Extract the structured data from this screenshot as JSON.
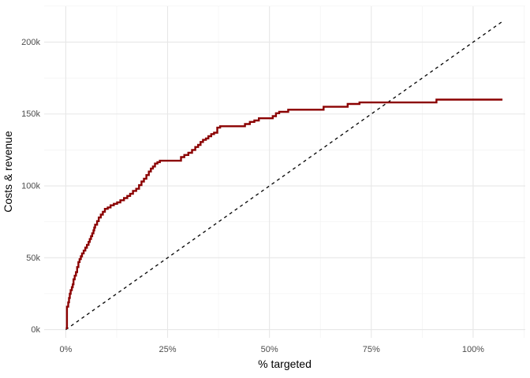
{
  "figure": {
    "background": "#FFFFFF"
  },
  "chart_data": {
    "type": "line",
    "subtype": "cumulative-gains-step-curve-with-diagonal-reference",
    "title": "",
    "xlabel": "% targeted",
    "ylabel": "Costs & revenue",
    "x_unit": "percent",
    "y_unit": "thousands",
    "x_domain": [
      -5.3,
      112.8
    ],
    "y_domain": [
      -5.7,
      224.9
    ],
    "x_major_ticks": [
      0,
      25,
      50,
      75,
      100
    ],
    "x_tick_labels": [
      "0%",
      "25%",
      "50%",
      "75%",
      "100%"
    ],
    "x_minor_ticks": [
      12.5,
      37.5,
      62.5,
      87.5,
      112.5
    ],
    "y_major_ticks": [
      0,
      50,
      100,
      150,
      200
    ],
    "y_tick_labels": [
      "0k",
      "50k",
      "100k",
      "150k",
      "200k"
    ],
    "y_minor_ticks": [
      25,
      75,
      125,
      175,
      225
    ],
    "grid": {
      "show_major": true,
      "show_minor": true,
      "major_color": "#E7E7E7",
      "minor_color": "#F2F2F2",
      "major_width": 1.1,
      "minor_width": 0.7,
      "background": "#FFFFFF"
    },
    "legend": "none",
    "tick_label_color": "#4D4D4D",
    "axis_title_color": "#000000",
    "series": [
      {
        "name": "cumulative revenue step curve",
        "type": "step-hv",
        "color": "#8B0000",
        "stroke_width": 2.4,
        "points": [
          [
            0,
            1
          ],
          [
            0.3,
            16
          ],
          [
            0.6,
            19
          ],
          [
            0.8,
            22
          ],
          [
            1.0,
            25
          ],
          [
            1.2,
            27.5
          ],
          [
            1.5,
            29.5
          ],
          [
            1.7,
            31.5
          ],
          [
            1.9,
            35
          ],
          [
            2.2,
            37.5
          ],
          [
            2.5,
            40
          ],
          [
            2.8,
            43.5
          ],
          [
            3.1,
            47
          ],
          [
            3.4,
            49
          ],
          [
            3.7,
            51
          ],
          [
            4.0,
            53
          ],
          [
            4.4,
            55
          ],
          [
            4.8,
            57
          ],
          [
            5.2,
            59
          ],
          [
            5.6,
            61
          ],
          [
            5.9,
            63
          ],
          [
            6.2,
            65
          ],
          [
            6.5,
            67
          ],
          [
            6.8,
            69
          ],
          [
            7.0,
            71
          ],
          [
            7.2,
            73
          ],
          [
            7.7,
            75.5
          ],
          [
            8.1,
            78
          ],
          [
            8.6,
            80
          ],
          [
            9.1,
            82
          ],
          [
            9.6,
            84
          ],
          [
            10.3,
            85
          ],
          [
            11.0,
            86.5
          ],
          [
            11.8,
            87.5
          ],
          [
            12.6,
            88.5
          ],
          [
            13.4,
            90
          ],
          [
            14.3,
            91.5
          ],
          [
            15.1,
            93
          ],
          [
            15.8,
            94.5
          ],
          [
            16.5,
            96.5
          ],
          [
            17.3,
            98
          ],
          [
            18.0,
            100.5
          ],
          [
            18.6,
            103
          ],
          [
            19.2,
            105
          ],
          [
            19.8,
            107.5
          ],
          [
            20.4,
            110
          ],
          [
            20.9,
            112
          ],
          [
            21.4,
            113.5
          ],
          [
            21.9,
            115.5
          ],
          [
            22.5,
            116.5
          ],
          [
            23.1,
            117.5
          ],
          [
            28.3,
            120
          ],
          [
            29.1,
            121.5
          ],
          [
            30.1,
            123
          ],
          [
            31.0,
            125
          ],
          [
            31.8,
            127
          ],
          [
            32.5,
            128.5
          ],
          [
            33.1,
            130.5
          ],
          [
            33.7,
            132
          ],
          [
            34.4,
            133
          ],
          [
            35.0,
            134.5
          ],
          [
            35.7,
            136
          ],
          [
            36.4,
            137
          ],
          [
            37.2,
            140.5
          ],
          [
            37.9,
            141.5
          ],
          [
            44.0,
            143
          ],
          [
            45.2,
            144.5
          ],
          [
            46.3,
            145.5
          ],
          [
            47.4,
            147
          ],
          [
            50.8,
            148.5
          ],
          [
            51.6,
            150.5
          ],
          [
            52.4,
            151.5
          ],
          [
            54.6,
            153
          ],
          [
            63.3,
            155
          ],
          [
            69.2,
            157
          ],
          [
            72.1,
            158
          ],
          [
            91.0,
            160
          ],
          [
            107.2,
            160
          ]
        ]
      },
      {
        "name": "costs diagonal reference line",
        "type": "line",
        "color": "#000000",
        "stroke_width": 1.3,
        "dash": "4 4.2",
        "points": [
          [
            0,
            0
          ],
          [
            107.2,
            214.4
          ]
        ]
      }
    ]
  }
}
